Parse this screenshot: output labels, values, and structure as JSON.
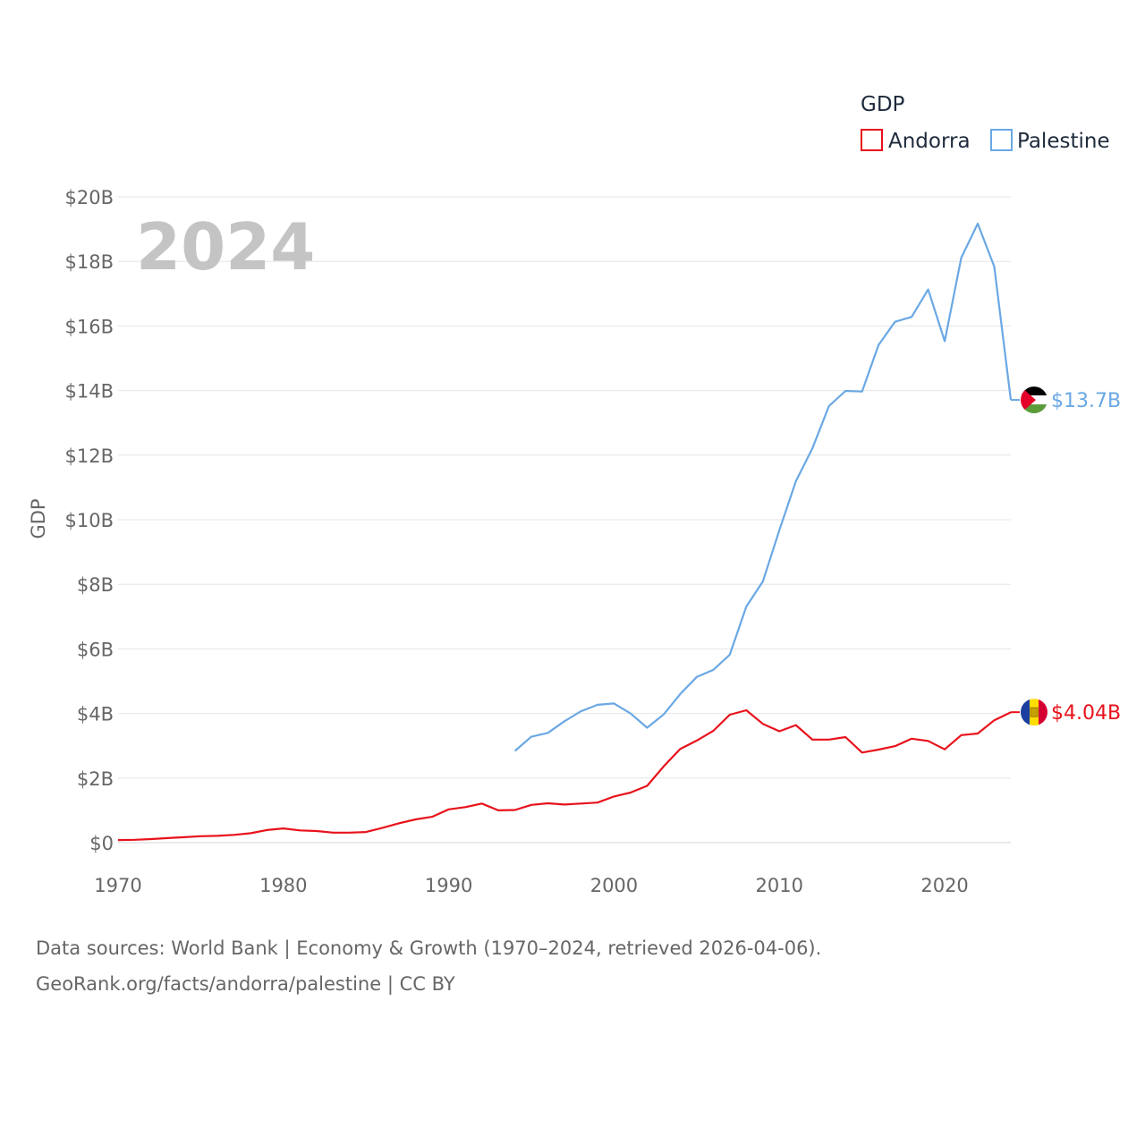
{
  "chart_data": {
    "type": "line",
    "year_label": "2024",
    "ylabel": "GDP",
    "legend_title": "GDP",
    "ylim": [
      0,
      20
    ],
    "xlim": [
      1970,
      2024
    ],
    "y_ticks": [
      "$0",
      "$2B",
      "$4B",
      "$6B",
      "$8B",
      "$10B",
      "$12B",
      "$14B",
      "$16B",
      "$18B",
      "$20B"
    ],
    "x_ticks": [
      "1970",
      "1980",
      "1990",
      "2000",
      "2010",
      "2020"
    ],
    "series": [
      {
        "name": "Andorra",
        "color": "#e8121b",
        "end_label": "$4.04B",
        "flag": "andorra-flag",
        "x": [
          1970,
          1971,
          1972,
          1973,
          1974,
          1975,
          1976,
          1977,
          1978,
          1979,
          1980,
          1981,
          1982,
          1983,
          1984,
          1985,
          1986,
          1987,
          1988,
          1989,
          1990,
          1991,
          1992,
          1993,
          1994,
          1995,
          1996,
          1997,
          1998,
          1999,
          2000,
          2001,
          2002,
          2003,
          2004,
          2005,
          2006,
          2007,
          2008,
          2009,
          2010,
          2011,
          2012,
          2013,
          2014,
          2015,
          2016,
          2017,
          2018,
          2019,
          2020,
          2021,
          2022,
          2023,
          2024
        ],
        "values": [
          0.08,
          0.09,
          0.11,
          0.14,
          0.17,
          0.2,
          0.21,
          0.24,
          0.29,
          0.39,
          0.44,
          0.38,
          0.36,
          0.31,
          0.31,
          0.33,
          0.46,
          0.6,
          0.72,
          0.8,
          1.03,
          1.1,
          1.21,
          1.0,
          1.01,
          1.17,
          1.22,
          1.18,
          1.21,
          1.24,
          1.43,
          1.55,
          1.76,
          2.36,
          2.9,
          3.16,
          3.46,
          3.96,
          4.1,
          3.68,
          3.45,
          3.64,
          3.19,
          3.19,
          3.27,
          2.79,
          2.88,
          2.99,
          3.22,
          3.15,
          2.89,
          3.33,
          3.38,
          3.79,
          4.04
        ]
      },
      {
        "name": "Palestine",
        "color": "#6aa8e4",
        "end_label": "$13.7B",
        "flag": "palestine-flag",
        "x": [
          1994,
          1995,
          1996,
          1997,
          1998,
          1999,
          2000,
          2001,
          2002,
          2003,
          2004,
          2005,
          2006,
          2007,
          2008,
          2009,
          2010,
          2011,
          2012,
          2013,
          2014,
          2015,
          2016,
          2017,
          2018,
          2019,
          2020,
          2021,
          2022,
          2023,
          2024
        ],
        "values": [
          2.84,
          3.28,
          3.4,
          3.76,
          4.07,
          4.27,
          4.31,
          4.0,
          3.56,
          3.97,
          4.6,
          5.13,
          5.35,
          5.82,
          7.31,
          8.09,
          9.68,
          11.19,
          12.21,
          13.52,
          13.99,
          13.97,
          15.41,
          16.13,
          16.28,
          17.13,
          15.53,
          18.11,
          19.17,
          17.84,
          13.71
        ]
      }
    ]
  },
  "source": {
    "line1": "Data sources: World Bank | Economy & Growth (1970–2024, retrieved 2026-04-06).",
    "line2": "GeoRank.org/facts/andorra/palestine | CC BY"
  }
}
